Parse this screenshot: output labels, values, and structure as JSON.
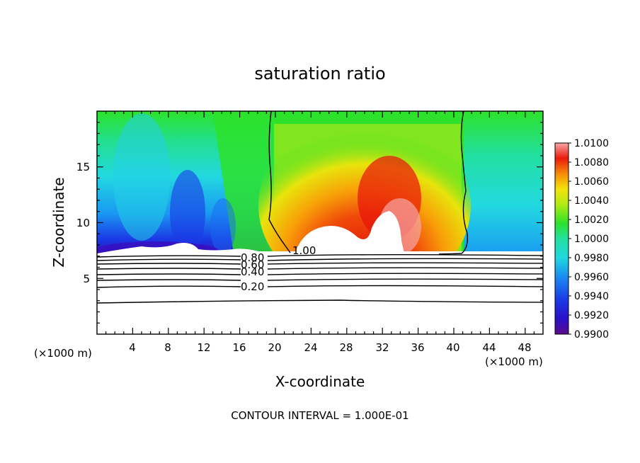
{
  "chart_data": {
    "type": "heatmap",
    "title": "saturation ratio",
    "xlabel": "X-coordinate",
    "ylabel": "Z-coordinate",
    "x_unit_left": "(×1000 m)",
    "x_unit_right": "(×1000 m)",
    "xlim": [
      0,
      50
    ],
    "ylim": [
      0,
      20
    ],
    "x_ticks": [
      "4",
      "8",
      "12",
      "16",
      "20",
      "24",
      "28",
      "32",
      "36",
      "40",
      "44",
      "48"
    ],
    "y_ticks": [
      "5",
      "10",
      "15"
    ],
    "colorbar": {
      "ticks": [
        "1.0100",
        "1.0080",
        "1.0060",
        "1.0040",
        "1.0020",
        "1.0000",
        "0.9980",
        "0.9960",
        "0.9940",
        "0.9920",
        "0.9900"
      ],
      "range": [
        0.99,
        1.01
      ]
    },
    "contour_labels": [
      "1.00",
      "0.80",
      "0.60",
      "0.40",
      "0.20"
    ],
    "contour_levels": [
      0.2,
      0.4,
      0.6,
      0.8,
      1.0
    ],
    "note": "CONTOUR INTERVAL = 1.000E-01"
  }
}
